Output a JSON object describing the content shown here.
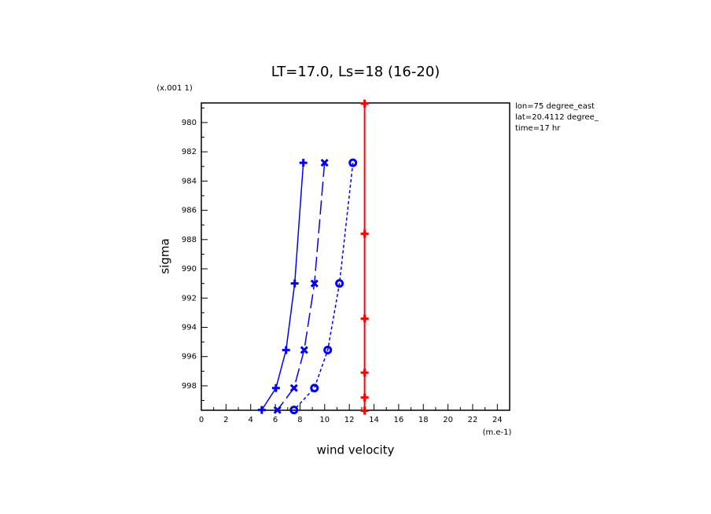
{
  "chart_data": {
    "type": "line",
    "title": "LT=17.0, Ls=18 (16-20)",
    "x_label": "wind velocity",
    "x_unit": "(m.e-1)",
    "y_label": "sigma",
    "y_unit": "(x.001 1)",
    "annotations": [
      "lon=75 degree_east",
      "lat=20.4112 degree_",
      "time=17 hr"
    ],
    "xlim": [
      0,
      25
    ],
    "xticks": [
      0,
      2,
      4,
      6,
      8,
      10,
      12,
      14,
      16,
      18,
      20,
      22,
      24
    ],
    "xminorticks": [
      1,
      3,
      5,
      7,
      9,
      11,
      13,
      15,
      17,
      19,
      21,
      23,
      25
    ],
    "ylim": [
      999.67,
      978.66
    ],
    "yticks": [
      980,
      982,
      984,
      986,
      988,
      990,
      992,
      994,
      996,
      998
    ],
    "yminorticks": [
      979,
      981,
      983,
      985,
      987,
      989,
      991,
      993,
      995,
      997,
      999
    ],
    "series": [
      {
        "color": "#0000ff",
        "dash": "solid",
        "marker": "plus",
        "x": [
          8.27,
          7.57,
          6.87,
          6.05,
          4.9
        ],
        "y": [
          982.75,
          991,
          995.55,
          998.15,
          999.65
        ]
      },
      {
        "color": "#0000ff",
        "dash": "long",
        "marker": "cross",
        "x": [
          9.99,
          9.17,
          8.34,
          7.51,
          6.17
        ],
        "y": [
          982.75,
          991,
          995.55,
          998.15,
          999.65
        ]
      },
      {
        "color": "#0000ff",
        "dash": "short",
        "marker": "circle",
        "x": [
          12.29,
          11.2,
          10.25,
          9.17,
          7.51
        ],
        "y": [
          982.75,
          991,
          995.55,
          998.15,
          999.65
        ]
      },
      {
        "color": "#ff0000",
        "dash": "solid",
        "marker": "plus",
        "x": [
          13.24,
          13.24,
          13.24,
          13.24,
          13.24,
          13.24
        ],
        "y": [
          978.7,
          987.6,
          993.4,
          997.1,
          998.8,
          999.7
        ]
      }
    ]
  }
}
